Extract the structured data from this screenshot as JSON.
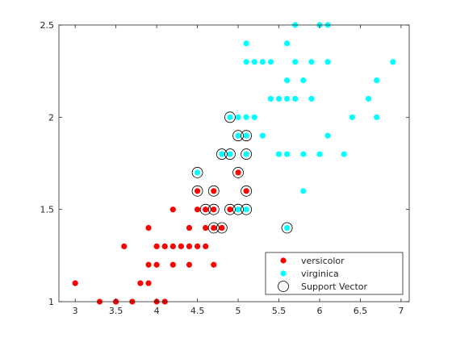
{
  "chart_data": {
    "type": "scatter",
    "title": "",
    "xlabel": "",
    "ylabel": "",
    "xlim": [
      2.8,
      7.1
    ],
    "ylim": [
      1,
      2.5
    ],
    "xticks": [
      3,
      3.5,
      4,
      4.5,
      5,
      5.5,
      6,
      6.5,
      7
    ],
    "xtick_labels": [
      "3",
      "3.5",
      "4",
      "4.5",
      "5",
      "5.5",
      "6",
      "6.5",
      "7"
    ],
    "yticks": [
      1,
      1.5,
      2,
      2.5
    ],
    "ytick_labels": [
      "1",
      "1.5",
      "2",
      "2.5"
    ],
    "grid": false,
    "legend_position": "bottom-right",
    "series": [
      {
        "name": "versicolor",
        "color": "#ff0000",
        "marker": "filled-circle",
        "points": [
          [
            3.0,
            1.1
          ],
          [
            3.3,
            1.0
          ],
          [
            3.5,
            1.0
          ],
          [
            3.7,
            1.0
          ],
          [
            4.0,
            1.0
          ],
          [
            4.1,
            1.0
          ],
          [
            3.5,
            1.0
          ],
          [
            3.6,
            1.3
          ],
          [
            3.8,
            1.1
          ],
          [
            3.9,
            1.1
          ],
          [
            3.9,
            1.2
          ],
          [
            3.9,
            1.4
          ],
          [
            4.0,
            1.2
          ],
          [
            4.0,
            1.3
          ],
          [
            4.1,
            1.3
          ],
          [
            4.2,
            1.2
          ],
          [
            4.2,
            1.3
          ],
          [
            4.2,
            1.5
          ],
          [
            4.3,
            1.3
          ],
          [
            4.4,
            1.2
          ],
          [
            4.4,
            1.3
          ],
          [
            4.4,
            1.4
          ],
          [
            4.5,
            1.3
          ],
          [
            4.5,
            1.5
          ],
          [
            4.5,
            1.6
          ],
          [
            4.6,
            1.3
          ],
          [
            4.6,
            1.4
          ],
          [
            4.6,
            1.5
          ],
          [
            4.7,
            1.2
          ],
          [
            4.7,
            1.4
          ],
          [
            4.7,
            1.5
          ],
          [
            4.7,
            1.6
          ],
          [
            4.8,
            1.4
          ],
          [
            4.9,
            1.5
          ],
          [
            5.0,
            1.7
          ],
          [
            5.1,
            1.6
          ]
        ]
      },
      {
        "name": "virginica",
        "color": "#00ffff",
        "marker": "filled-circle",
        "points": [
          [
            4.5,
            1.7
          ],
          [
            4.8,
            1.8
          ],
          [
            4.9,
            1.8
          ],
          [
            4.9,
            2.0
          ],
          [
            5.0,
            1.5
          ],
          [
            5.0,
            1.9
          ],
          [
            5.0,
            2.0
          ],
          [
            5.1,
            1.5
          ],
          [
            5.1,
            1.8
          ],
          [
            5.1,
            1.9
          ],
          [
            5.1,
            2.0
          ],
          [
            5.1,
            2.3
          ],
          [
            5.1,
            2.4
          ],
          [
            5.2,
            2.0
          ],
          [
            5.2,
            2.3
          ],
          [
            5.3,
            1.9
          ],
          [
            5.3,
            2.3
          ],
          [
            5.4,
            2.1
          ],
          [
            5.4,
            2.3
          ],
          [
            5.5,
            1.8
          ],
          [
            5.5,
            2.1
          ],
          [
            5.6,
            1.4
          ],
          [
            5.6,
            1.8
          ],
          [
            5.6,
            2.1
          ],
          [
            5.6,
            2.2
          ],
          [
            5.6,
            2.4
          ],
          [
            5.7,
            2.1
          ],
          [
            5.7,
            2.3
          ],
          [
            5.7,
            2.5
          ],
          [
            5.8,
            1.6
          ],
          [
            5.8,
            1.8
          ],
          [
            5.8,
            2.2
          ],
          [
            5.9,
            2.1
          ],
          [
            5.9,
            2.3
          ],
          [
            6.0,
            1.8
          ],
          [
            6.0,
            2.5
          ],
          [
            6.1,
            1.9
          ],
          [
            6.1,
            2.3
          ],
          [
            6.1,
            2.5
          ],
          [
            6.3,
            1.8
          ],
          [
            6.4,
            2.0
          ],
          [
            6.6,
            2.1
          ],
          [
            6.7,
            2.0
          ],
          [
            6.7,
            2.2
          ],
          [
            6.9,
            2.3
          ]
        ]
      },
      {
        "name": "Support Vector",
        "color": "#000000",
        "marker": "open-circle",
        "points": [
          [
            4.5,
            1.6
          ],
          [
            4.5,
            1.7
          ],
          [
            4.6,
            1.5
          ],
          [
            4.7,
            1.4
          ],
          [
            4.7,
            1.5
          ],
          [
            4.7,
            1.6
          ],
          [
            4.8,
            1.4
          ],
          [
            4.8,
            1.8
          ],
          [
            4.9,
            1.5
          ],
          [
            4.9,
            1.8
          ],
          [
            4.9,
            2.0
          ],
          [
            5.0,
            1.5
          ],
          [
            5.0,
            1.7
          ],
          [
            5.0,
            1.9
          ],
          [
            5.1,
            1.5
          ],
          [
            5.1,
            1.6
          ],
          [
            5.1,
            1.8
          ],
          [
            5.1,
            1.9
          ],
          [
            5.6,
            1.4
          ]
        ]
      }
    ]
  }
}
